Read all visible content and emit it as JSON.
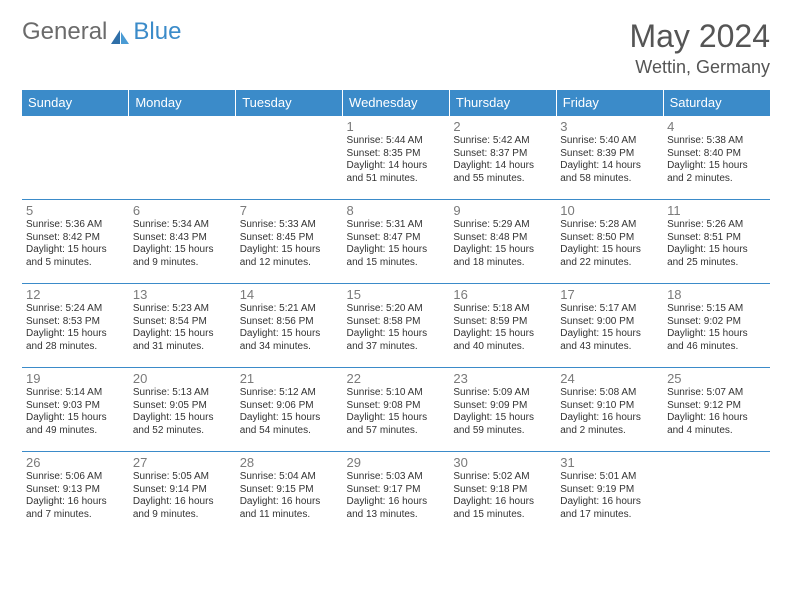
{
  "logo": {
    "text1": "General",
    "text2": "Blue",
    "text1_color": "#6b6b6b",
    "text2_color": "#3b8bc9",
    "sail_color": "#2f6fa8"
  },
  "title": "May 2024",
  "location": "Wettin, Germany",
  "colors": {
    "header_bg": "#3b8bc9",
    "header_text": "#ffffff",
    "row_divider": "#3b8bc9",
    "daynum_color": "#7a7a7a",
    "body_text": "#333333",
    "title_color": "#555555"
  },
  "typography": {
    "month_title_pt": 32,
    "location_pt": 18,
    "dayheader_pt": 13,
    "daynum_pt": 13,
    "cell_text_pt": 10
  },
  "day_headers": [
    "Sunday",
    "Monday",
    "Tuesday",
    "Wednesday",
    "Thursday",
    "Friday",
    "Saturday"
  ],
  "weeks": [
    [
      {
        "num": "",
        "lines": []
      },
      {
        "num": "",
        "lines": []
      },
      {
        "num": "",
        "lines": []
      },
      {
        "num": "1",
        "lines": [
          "Sunrise: 5:44 AM",
          "Sunset: 8:35 PM",
          "Daylight: 14 hours",
          "and 51 minutes."
        ]
      },
      {
        "num": "2",
        "lines": [
          "Sunrise: 5:42 AM",
          "Sunset: 8:37 PM",
          "Daylight: 14 hours",
          "and 55 minutes."
        ]
      },
      {
        "num": "3",
        "lines": [
          "Sunrise: 5:40 AM",
          "Sunset: 8:39 PM",
          "Daylight: 14 hours",
          "and 58 minutes."
        ]
      },
      {
        "num": "4",
        "lines": [
          "Sunrise: 5:38 AM",
          "Sunset: 8:40 PM",
          "Daylight: 15 hours",
          "and 2 minutes."
        ]
      }
    ],
    [
      {
        "num": "5",
        "lines": [
          "Sunrise: 5:36 AM",
          "Sunset: 8:42 PM",
          "Daylight: 15 hours",
          "and 5 minutes."
        ]
      },
      {
        "num": "6",
        "lines": [
          "Sunrise: 5:34 AM",
          "Sunset: 8:43 PM",
          "Daylight: 15 hours",
          "and 9 minutes."
        ]
      },
      {
        "num": "7",
        "lines": [
          "Sunrise: 5:33 AM",
          "Sunset: 8:45 PM",
          "Daylight: 15 hours",
          "and 12 minutes."
        ]
      },
      {
        "num": "8",
        "lines": [
          "Sunrise: 5:31 AM",
          "Sunset: 8:47 PM",
          "Daylight: 15 hours",
          "and 15 minutes."
        ]
      },
      {
        "num": "9",
        "lines": [
          "Sunrise: 5:29 AM",
          "Sunset: 8:48 PM",
          "Daylight: 15 hours",
          "and 18 minutes."
        ]
      },
      {
        "num": "10",
        "lines": [
          "Sunrise: 5:28 AM",
          "Sunset: 8:50 PM",
          "Daylight: 15 hours",
          "and 22 minutes."
        ]
      },
      {
        "num": "11",
        "lines": [
          "Sunrise: 5:26 AM",
          "Sunset: 8:51 PM",
          "Daylight: 15 hours",
          "and 25 minutes."
        ]
      }
    ],
    [
      {
        "num": "12",
        "lines": [
          "Sunrise: 5:24 AM",
          "Sunset: 8:53 PM",
          "Daylight: 15 hours",
          "and 28 minutes."
        ]
      },
      {
        "num": "13",
        "lines": [
          "Sunrise: 5:23 AM",
          "Sunset: 8:54 PM",
          "Daylight: 15 hours",
          "and 31 minutes."
        ]
      },
      {
        "num": "14",
        "lines": [
          "Sunrise: 5:21 AM",
          "Sunset: 8:56 PM",
          "Daylight: 15 hours",
          "and 34 minutes."
        ]
      },
      {
        "num": "15",
        "lines": [
          "Sunrise: 5:20 AM",
          "Sunset: 8:58 PM",
          "Daylight: 15 hours",
          "and 37 minutes."
        ]
      },
      {
        "num": "16",
        "lines": [
          "Sunrise: 5:18 AM",
          "Sunset: 8:59 PM",
          "Daylight: 15 hours",
          "and 40 minutes."
        ]
      },
      {
        "num": "17",
        "lines": [
          "Sunrise: 5:17 AM",
          "Sunset: 9:00 PM",
          "Daylight: 15 hours",
          "and 43 minutes."
        ]
      },
      {
        "num": "18",
        "lines": [
          "Sunrise: 5:15 AM",
          "Sunset: 9:02 PM",
          "Daylight: 15 hours",
          "and 46 minutes."
        ]
      }
    ],
    [
      {
        "num": "19",
        "lines": [
          "Sunrise: 5:14 AM",
          "Sunset: 9:03 PM",
          "Daylight: 15 hours",
          "and 49 minutes."
        ]
      },
      {
        "num": "20",
        "lines": [
          "Sunrise: 5:13 AM",
          "Sunset: 9:05 PM",
          "Daylight: 15 hours",
          "and 52 minutes."
        ]
      },
      {
        "num": "21",
        "lines": [
          "Sunrise: 5:12 AM",
          "Sunset: 9:06 PM",
          "Daylight: 15 hours",
          "and 54 minutes."
        ]
      },
      {
        "num": "22",
        "lines": [
          "Sunrise: 5:10 AM",
          "Sunset: 9:08 PM",
          "Daylight: 15 hours",
          "and 57 minutes."
        ]
      },
      {
        "num": "23",
        "lines": [
          "Sunrise: 5:09 AM",
          "Sunset: 9:09 PM",
          "Daylight: 15 hours",
          "and 59 minutes."
        ]
      },
      {
        "num": "24",
        "lines": [
          "Sunrise: 5:08 AM",
          "Sunset: 9:10 PM",
          "Daylight: 16 hours",
          "and 2 minutes."
        ]
      },
      {
        "num": "25",
        "lines": [
          "Sunrise: 5:07 AM",
          "Sunset: 9:12 PM",
          "Daylight: 16 hours",
          "and 4 minutes."
        ]
      }
    ],
    [
      {
        "num": "26",
        "lines": [
          "Sunrise: 5:06 AM",
          "Sunset: 9:13 PM",
          "Daylight: 16 hours",
          "and 7 minutes."
        ]
      },
      {
        "num": "27",
        "lines": [
          "Sunrise: 5:05 AM",
          "Sunset: 9:14 PM",
          "Daylight: 16 hours",
          "and 9 minutes."
        ]
      },
      {
        "num": "28",
        "lines": [
          "Sunrise: 5:04 AM",
          "Sunset: 9:15 PM",
          "Daylight: 16 hours",
          "and 11 minutes."
        ]
      },
      {
        "num": "29",
        "lines": [
          "Sunrise: 5:03 AM",
          "Sunset: 9:17 PM",
          "Daylight: 16 hours",
          "and 13 minutes."
        ]
      },
      {
        "num": "30",
        "lines": [
          "Sunrise: 5:02 AM",
          "Sunset: 9:18 PM",
          "Daylight: 16 hours",
          "and 15 minutes."
        ]
      },
      {
        "num": "31",
        "lines": [
          "Sunrise: 5:01 AM",
          "Sunset: 9:19 PM",
          "Daylight: 16 hours",
          "and 17 minutes."
        ]
      },
      {
        "num": "",
        "lines": []
      }
    ]
  ]
}
